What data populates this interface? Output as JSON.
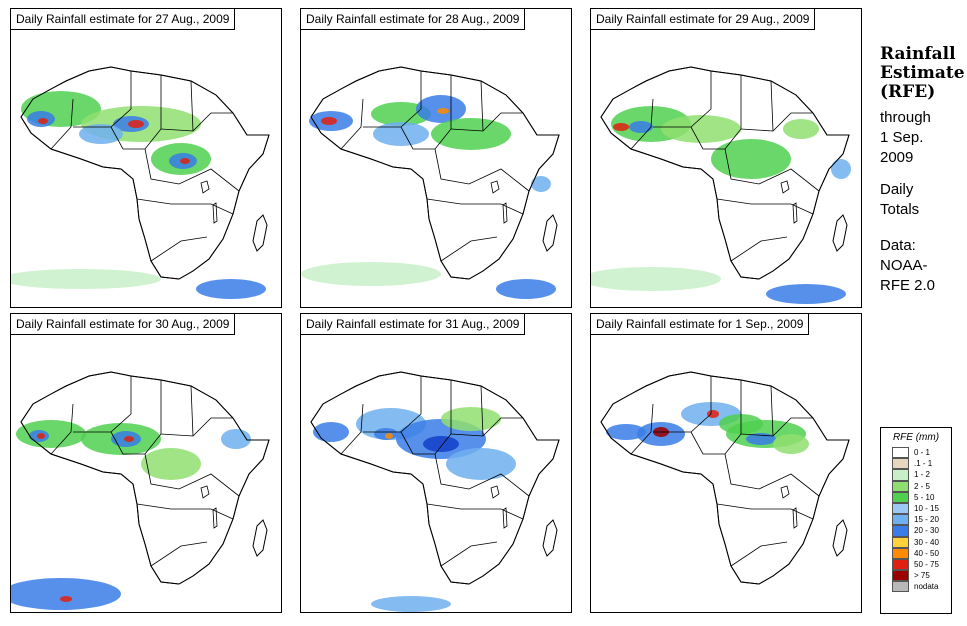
{
  "colors": {
    "background": "#ffffff",
    "ocean": "#ffffff",
    "land_outline": "#000000",
    "trace": "#e8d7c0",
    "light": "#c8f0c8",
    "green": "#8fdf70",
    "midgreen": "#4fd04f",
    "lightblue": "#6fb0ee",
    "blue": "#3a7ce8",
    "darkblue": "#1240c8",
    "yellow": "#ffd23c",
    "orange": "#ff8a00",
    "red": "#e02010",
    "darkred": "#9a0000",
    "nodata": "#b8b8b8"
  },
  "panels": [
    {
      "title": "Daily Rainfall estimate for  27 Aug., 2009",
      "map_icon": "africa-map"
    },
    {
      "title": "Daily Rainfall estimate for  28 Aug., 2009",
      "map_icon": "africa-map"
    },
    {
      "title": "Daily Rainfall estimate for  29 Aug., 2009",
      "map_icon": "africa-map"
    },
    {
      "title": "Daily Rainfall estimate for  30 Aug., 2009",
      "map_icon": "africa-map"
    },
    {
      "title": "Daily Rainfall estimate for  31 Aug., 2009",
      "map_icon": "africa-map"
    },
    {
      "title": "Daily Rainfall estimate for  1 Sep., 2009",
      "map_icon": "africa-map"
    }
  ],
  "side": {
    "title_line1": "Rainfall",
    "title_line2": "Estimate",
    "title_line3": "(RFE)",
    "through": "through",
    "date_line1": "1 Sep.",
    "date_line2": "2009",
    "daily": "Daily",
    "totals": "Totals",
    "data_label": "Data:",
    "source_line1": "NOAA-",
    "source_line2": "RFE 2.0"
  },
  "legend": {
    "title": "RFE (mm)",
    "items": [
      {
        "label": "0 - 1",
        "color": "#ffffff"
      },
      {
        "label": ".1 - 1",
        "color": "#e8d7c0"
      },
      {
        "label": "1 - 2",
        "color": "#c8f0c8"
      },
      {
        "label": "2 - 5",
        "color": "#8fdf70"
      },
      {
        "label": "5 - 10",
        "color": "#4fd04f"
      },
      {
        "label": "10 - 15",
        "color": "#9cc8f4"
      },
      {
        "label": "15 - 20",
        "color": "#6fb0ee"
      },
      {
        "label": "20 - 30",
        "color": "#3a7ce8"
      },
      {
        "label": "30 - 40",
        "color": "#ffd23c"
      },
      {
        "label": "40 - 50",
        "color": "#ff8a00"
      },
      {
        "label": "50 - 75",
        "color": "#e02010"
      },
      {
        "label": "> 75",
        "color": "#9a0000"
      },
      {
        "label": "nodata",
        "color": "#b8b8b8"
      }
    ]
  }
}
